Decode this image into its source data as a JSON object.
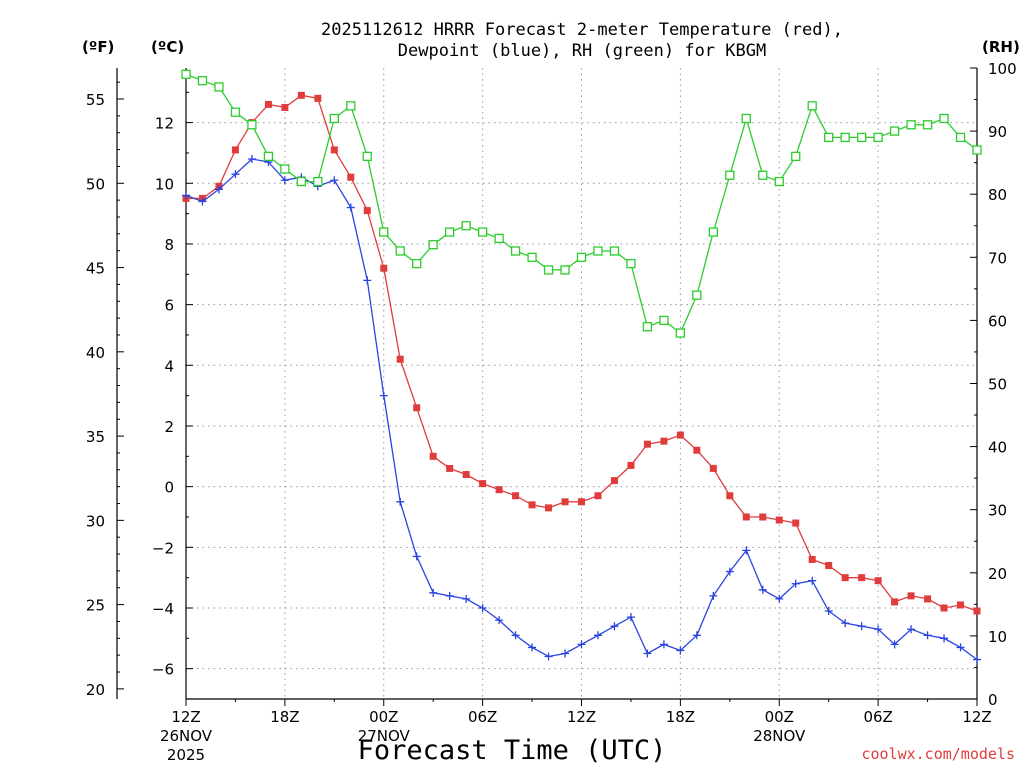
{
  "chart_data": {
    "type": "line",
    "title_line1": "2025112612 HRRR Forecast 2-meter Temperature (red),",
    "title_line2": "Dewpoint (blue), RH (green) for KBGM",
    "xlabel": "Forecast Time (UTC)",
    "credit": "coolwx.com/models",
    "units": {
      "left_f": "(ºF)",
      "left_c": "(ºC)",
      "right_rh": "(RH)"
    },
    "grid": true,
    "x_range_hours": [
      0,
      48
    ],
    "x_ticks": [
      {
        "hour": 0,
        "label": "12Z",
        "date": "26NOV",
        "year": "2025"
      },
      {
        "hour": 6,
        "label": "18Z"
      },
      {
        "hour": 12,
        "label": "00Z",
        "date": "27NOV"
      },
      {
        "hour": 18,
        "label": "06Z"
      },
      {
        "hour": 24,
        "label": "12Z"
      },
      {
        "hour": 30,
        "label": "18Z"
      },
      {
        "hour": 36,
        "label": "00Z",
        "date": "28NOV"
      },
      {
        "hour": 42,
        "label": "06Z"
      },
      {
        "hour": 48,
        "label": "12Z"
      }
    ],
    "celsius_axis": {
      "range": [
        -7.0,
        13.8
      ],
      "ticks": [
        -6,
        -4,
        -2,
        0,
        2,
        4,
        6,
        8,
        10,
        12
      ]
    },
    "fahrenheit_axis": {
      "ticks": [
        20,
        25,
        30,
        35,
        40,
        45,
        50,
        55
      ]
    },
    "rh_axis": {
      "range": [
        0,
        100
      ],
      "ticks": [
        0,
        10,
        20,
        30,
        40,
        50,
        60,
        70,
        80,
        90,
        100
      ]
    },
    "series": [
      {
        "name": "2-meter Temperature",
        "unit": "C",
        "color": "#e03c3c",
        "marker": "filled-square",
        "values": [
          9.5,
          9.5,
          9.9,
          11.1,
          12.0,
          12.6,
          12.5,
          12.9,
          12.8,
          11.1,
          10.2,
          9.1,
          7.2,
          4.2,
          2.6,
          1.0,
          0.6,
          0.4,
          0.1,
          -0.1,
          -0.3,
          -0.6,
          -0.7,
          -0.5,
          -0.5,
          -0.3,
          0.2,
          0.7,
          1.4,
          1.5,
          1.7,
          1.2,
          0.6,
          -0.3,
          -1.0,
          -1.0,
          -1.1,
          -1.2,
          -2.4,
          -2.6,
          -3.0,
          -3.0,
          -3.1,
          -3.8,
          -3.6,
          -3.7,
          -4.0,
          -3.9,
          -4.1
        ]
      },
      {
        "name": "Dewpoint",
        "unit": "C",
        "color": "#2a44e0",
        "marker": "plus",
        "values": [
          9.6,
          9.4,
          9.8,
          10.3,
          10.8,
          10.7,
          10.1,
          10.2,
          9.9,
          10.1,
          9.2,
          6.8,
          3.0,
          -0.5,
          -2.3,
          -3.5,
          -3.6,
          -3.7,
          -4.0,
          -4.4,
          -4.9,
          -5.3,
          -5.6,
          -5.5,
          -5.2,
          -4.9,
          -4.6,
          -4.3,
          -5.5,
          -5.2,
          -5.4,
          -4.9,
          -3.6,
          -2.8,
          -2.1,
          -3.4,
          -3.7,
          -3.2,
          -3.1,
          -4.1,
          -4.5,
          -4.6,
          -4.7,
          -5.2,
          -4.7,
          -4.9,
          -5.0,
          -5.3,
          -5.7
        ]
      },
      {
        "name": "Relative Humidity",
        "unit": "%",
        "color": "#2ccc2c",
        "marker": "open-square",
        "values": [
          99,
          98,
          97,
          93,
          91,
          86,
          84,
          82,
          82,
          92,
          94,
          86,
          74,
          71,
          69,
          72,
          74,
          75,
          74,
          73,
          71,
          70,
          68,
          68,
          70,
          71,
          71,
          69,
          59,
          60,
          58,
          64,
          74,
          83,
          92,
          83,
          82,
          86,
          94,
          89,
          89,
          89,
          89,
          90,
          91,
          91,
          92,
          89,
          87
        ]
      }
    ]
  }
}
